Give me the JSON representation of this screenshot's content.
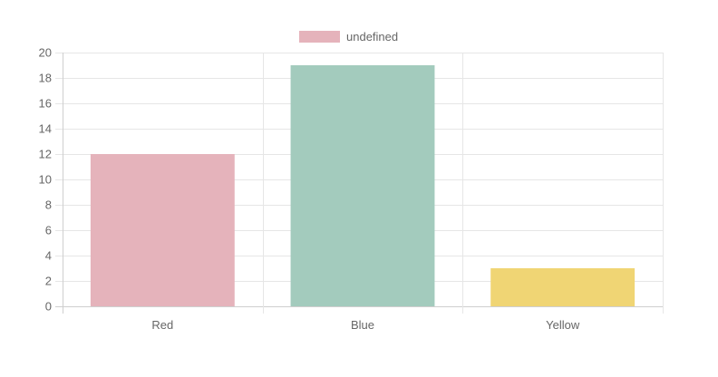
{
  "chart_data": {
    "type": "bar",
    "categories": [
      "Red",
      "Blue",
      "Yellow"
    ],
    "values": [
      12,
      19,
      3
    ],
    "colors": [
      "#e5b3bb",
      "#a3cbbd",
      "#f0d574"
    ],
    "legend": {
      "label": "undefined",
      "color": "#e5b3bb",
      "position": "top"
    },
    "title": "",
    "xlabel": "",
    "ylabel": "",
    "ylim": [
      0,
      20
    ],
    "yticks": [
      0,
      2,
      4,
      6,
      8,
      10,
      12,
      14,
      16,
      18,
      20
    ],
    "grid": true
  }
}
